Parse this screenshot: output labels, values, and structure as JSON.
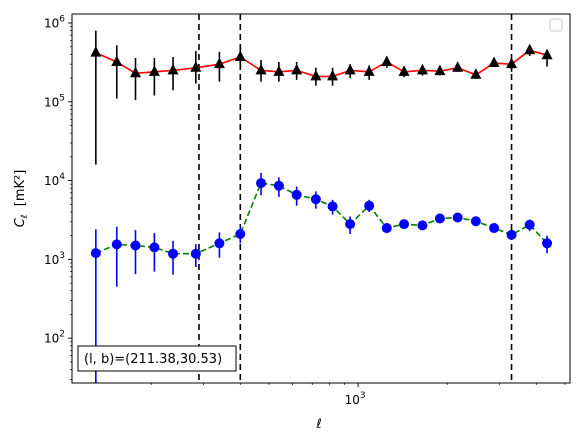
{
  "chart_data": {
    "type": "scatter",
    "xlabel": "ℓ",
    "ylabel": "C_ℓ [mK²]",
    "x_scale": "log",
    "y_scale": "log",
    "xlim": [
      108,
      5200
    ],
    "ylim": [
      27,
      1300000
    ],
    "x_tick_labels": [
      {
        "value": 1000,
        "base": "10",
        "exp": "3"
      }
    ],
    "y_tick_labels": [
      {
        "value": 100,
        "base": "10",
        "exp": "2"
      },
      {
        "value": 1000,
        "base": "10",
        "exp": "3"
      },
      {
        "value": 10000,
        "base": "10",
        "exp": "4"
      },
      {
        "value": 100000,
        "base": "10",
        "exp": "5"
      },
      {
        "value": 1000000,
        "base": "10",
        "exp": "6"
      }
    ],
    "grid": false,
    "legend": "top-right, empty",
    "vlines": [
      290,
      400,
      3300
    ],
    "series": [
      {
        "color": "#000000",
        "line_color": "#ff0000",
        "line_style": "solid",
        "marker": "triangle",
        "points": [
          {
            "x": 130,
            "y": 420000,
            "lo": 16000,
            "hi": 800000
          },
          {
            "x": 153,
            "y": 320000,
            "lo": 110000,
            "hi": 520000
          },
          {
            "x": 177,
            "y": 230000,
            "lo": 105000,
            "hi": 360000
          },
          {
            "x": 205,
            "y": 240000,
            "lo": 120000,
            "hi": 360000
          },
          {
            "x": 237,
            "y": 250000,
            "lo": 140000,
            "hi": 370000
          },
          {
            "x": 283,
            "y": 270000,
            "lo": 170000,
            "hi": 440000
          },
          {
            "x": 340,
            "y": 300000,
            "lo": 180000,
            "hi": 430000
          },
          {
            "x": 400,
            "y": 370000,
            "lo": 270000,
            "hi": 490000
          },
          {
            "x": 470,
            "y": 250000,
            "lo": 180000,
            "hi": 340000
          },
          {
            "x": 540,
            "y": 240000,
            "lo": 180000,
            "hi": 320000
          },
          {
            "x": 620,
            "y": 250000,
            "lo": 190000,
            "hi": 320000
          },
          {
            "x": 720,
            "y": 210000,
            "lo": 160000,
            "hi": 270000
          },
          {
            "x": 820,
            "y": 210000,
            "lo": 160000,
            "hi": 270000
          },
          {
            "x": 940,
            "y": 250000,
            "lo": 200000,
            "hi": 300000
          },
          {
            "x": 1090,
            "y": 240000,
            "lo": 190000,
            "hi": 290000
          },
          {
            "x": 1250,
            "y": 320000,
            "lo": 270000,
            "hi": 370000
          },
          {
            "x": 1430,
            "y": 240000,
            "lo": 205000,
            "hi": 280000
          },
          {
            "x": 1650,
            "y": 250000,
            "lo": 215000,
            "hi": 290000
          },
          {
            "x": 1890,
            "y": 245000,
            "lo": 215000,
            "hi": 280000
          },
          {
            "x": 2170,
            "y": 270000,
            "lo": 240000,
            "hi": 305000
          },
          {
            "x": 2500,
            "y": 220000,
            "lo": 195000,
            "hi": 250000
          },
          {
            "x": 2880,
            "y": 310000,
            "lo": 280000,
            "hi": 345000
          },
          {
            "x": 3300,
            "y": 300000,
            "lo": 240000,
            "hi": 350000
          },
          {
            "x": 3800,
            "y": 450000,
            "lo": 380000,
            "hi": 520000
          },
          {
            "x": 4350,
            "y": 390000,
            "lo": 280000,
            "hi": 460000
          }
        ]
      },
      {
        "color": "#0000ff",
        "line_color": "#008000",
        "line_style": "dashed",
        "marker": "circle",
        "points": [
          {
            "x": 130,
            "y": 1200,
            "lo": 27,
            "hi": 2400
          },
          {
            "x": 153,
            "y": 1550,
            "lo": 450,
            "hi": 2600
          },
          {
            "x": 177,
            "y": 1500,
            "lo": 650,
            "hi": 2350
          },
          {
            "x": 205,
            "y": 1420,
            "lo": 700,
            "hi": 2150
          },
          {
            "x": 237,
            "y": 1180,
            "lo": 640,
            "hi": 1720
          },
          {
            "x": 283,
            "y": 1180,
            "lo": 800,
            "hi": 1560
          },
          {
            "x": 340,
            "y": 1600,
            "lo": 1050,
            "hi": 2200
          },
          {
            "x": 400,
            "y": 2100,
            "lo": 1600,
            "hi": 2600
          },
          {
            "x": 470,
            "y": 9300,
            "lo": 6500,
            "hi": 12500
          },
          {
            "x": 540,
            "y": 8600,
            "lo": 6200,
            "hi": 11000
          },
          {
            "x": 620,
            "y": 6600,
            "lo": 4800,
            "hi": 8400
          },
          {
            "x": 720,
            "y": 5800,
            "lo": 4400,
            "hi": 7300
          },
          {
            "x": 820,
            "y": 4700,
            "lo": 3700,
            "hi": 5700
          },
          {
            "x": 940,
            "y": 2800,
            "lo": 2100,
            "hi": 3500
          },
          {
            "x": 1090,
            "y": 4800,
            "lo": 4000,
            "hi": 5700
          },
          {
            "x": 1250,
            "y": 2500,
            "lo": 2150,
            "hi": 2850
          },
          {
            "x": 1430,
            "y": 2800,
            "lo": 2450,
            "hi": 3150
          },
          {
            "x": 1650,
            "y": 2700,
            "lo": 2400,
            "hi": 3000
          },
          {
            "x": 1890,
            "y": 3300,
            "lo": 2950,
            "hi": 3650
          },
          {
            "x": 2170,
            "y": 3400,
            "lo": 3050,
            "hi": 3750
          },
          {
            "x": 2500,
            "y": 3050,
            "lo": 2750,
            "hi": 3350
          },
          {
            "x": 2880,
            "y": 2500,
            "lo": 2250,
            "hi": 2750
          },
          {
            "x": 3300,
            "y": 2050,
            "lo": 1800,
            "hi": 2300
          },
          {
            "x": 3800,
            "y": 2750,
            "lo": 2300,
            "hi": 3200
          },
          {
            "x": 4350,
            "y": 1600,
            "lo": 1200,
            "hi": 2000
          }
        ]
      }
    ],
    "annotation": {
      "text": "(l, b)=(211.38,30.53)",
      "position": "bottom-left"
    }
  }
}
